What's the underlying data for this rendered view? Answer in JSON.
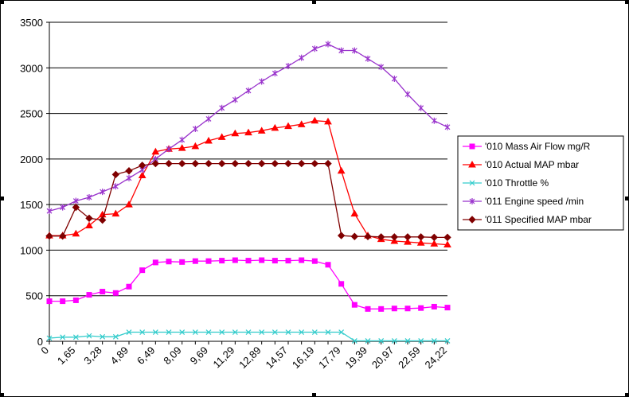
{
  "chart_data": {
    "type": "line",
    "title": "",
    "xlabel": "",
    "ylabel": "",
    "ylim": [
      0,
      3500
    ],
    "yticks": [
      0,
      500,
      1000,
      1500,
      2000,
      2500,
      3000,
      3500
    ],
    "grid": "horizontal",
    "legend": "right",
    "x_tick_labels": [
      "0",
      "1,65",
      "3,28",
      "4,89",
      "6,49",
      "8,09",
      "9,69",
      "11,29",
      "12,89",
      "14,57",
      "16,19",
      "17,79",
      "19,39",
      "20,97",
      "22,59",
      "24,22"
    ],
    "series": [
      {
        "name": "'010 Mass Air Flow  mg/R",
        "color": "#ff00ff",
        "marker": "square",
        "values": [
          440,
          440,
          450,
          510,
          545,
          530,
          600,
          780,
          865,
          875,
          870,
          880,
          880,
          885,
          890,
          885,
          890,
          885,
          885,
          890,
          880,
          840,
          630,
          400,
          355,
          355,
          360,
          360,
          365,
          380,
          370
        ]
      },
      {
        "name": "'010 Actual MAP  mbar",
        "color": "#ff0000",
        "marker": "triangle",
        "values": [
          1160,
          1160,
          1180,
          1270,
          1390,
          1400,
          1500,
          1820,
          2080,
          2110,
          2120,
          2140,
          2200,
          2240,
          2280,
          2290,
          2310,
          2340,
          2360,
          2380,
          2420,
          2410,
          1870,
          1400,
          1160,
          1120,
          1100,
          1090,
          1080,
          1070,
          1060
        ]
      },
      {
        "name": "'010 Throttle %",
        "color": "#33cccc",
        "marker": "x",
        "values": [
          35,
          45,
          45,
          60,
          50,
          50,
          100,
          100,
          100,
          100,
          100,
          100,
          100,
          100,
          100,
          100,
          100,
          100,
          100,
          100,
          100,
          100,
          100,
          5,
          5,
          5,
          5,
          5,
          5,
          5,
          5
        ]
      },
      {
        "name": "'011 Engine speed  /min",
        "color": "#9933cc",
        "marker": "star",
        "values": [
          1430,
          1470,
          1540,
          1580,
          1640,
          1700,
          1790,
          1880,
          2000,
          2110,
          2210,
          2330,
          2440,
          2560,
          2650,
          2750,
          2850,
          2940,
          3020,
          3110,
          3210,
          3260,
          3190,
          3190,
          3100,
          3010,
          2880,
          2710,
          2560,
          2420,
          2350
        ]
      },
      {
        "name": "'011 Specified MAP  mbar",
        "color": "#800000",
        "marker": "diamond",
        "values": [
          1155,
          1155,
          1470,
          1350,
          1330,
          1830,
          1870,
          1930,
          1950,
          1950,
          1950,
          1950,
          1950,
          1950,
          1950,
          1950,
          1950,
          1950,
          1950,
          1950,
          1950,
          1950,
          1160,
          1150,
          1150,
          1145,
          1145,
          1145,
          1145,
          1140,
          1140
        ]
      }
    ]
  }
}
